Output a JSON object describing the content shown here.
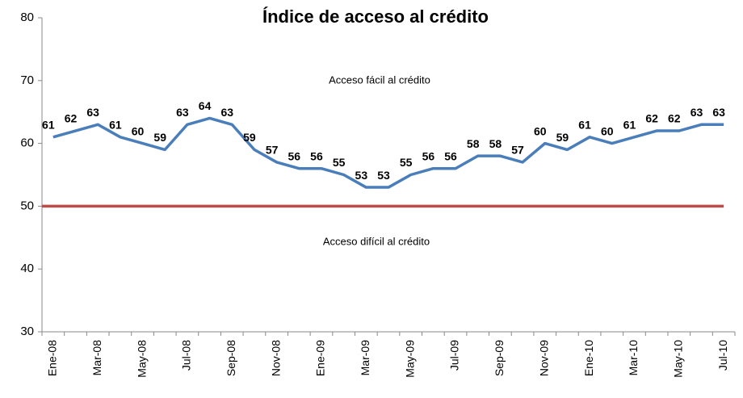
{
  "chart_data": {
    "type": "line",
    "title": "Índice de acceso al crédito",
    "annotations": [
      "Acceso fácil al crédito",
      "Acceso difícil al crédito"
    ],
    "categories": [
      "Ene-08",
      null,
      "Mar-08",
      null,
      "May-08",
      null,
      "Jul-08",
      null,
      "Sep-08",
      null,
      "Nov-08",
      null,
      "Ene-09",
      null,
      "Mar-09",
      null,
      "May-09",
      null,
      "Jul-09",
      null,
      "Sep-09",
      null,
      "Nov-09",
      null,
      "Ene-10",
      null,
      "Mar-10",
      null,
      "May-10",
      null,
      "Jul-10"
    ],
    "series": [
      {
        "color": "#4a7ebb",
        "values": [
          61,
          62,
          63,
          61,
          60,
          59,
          63,
          64,
          63,
          59,
          57,
          56,
          56,
          55,
          53,
          53,
          55,
          56,
          56,
          58,
          58,
          57,
          60,
          59,
          61,
          60,
          61,
          62,
          62,
          63,
          63
        ]
      }
    ],
    "reference_line": {
      "value": 50,
      "color": "#be4b48"
    },
    "ylim": [
      30,
      80
    ],
    "yticks": [
      30,
      40,
      50,
      60,
      70,
      80
    ]
  }
}
